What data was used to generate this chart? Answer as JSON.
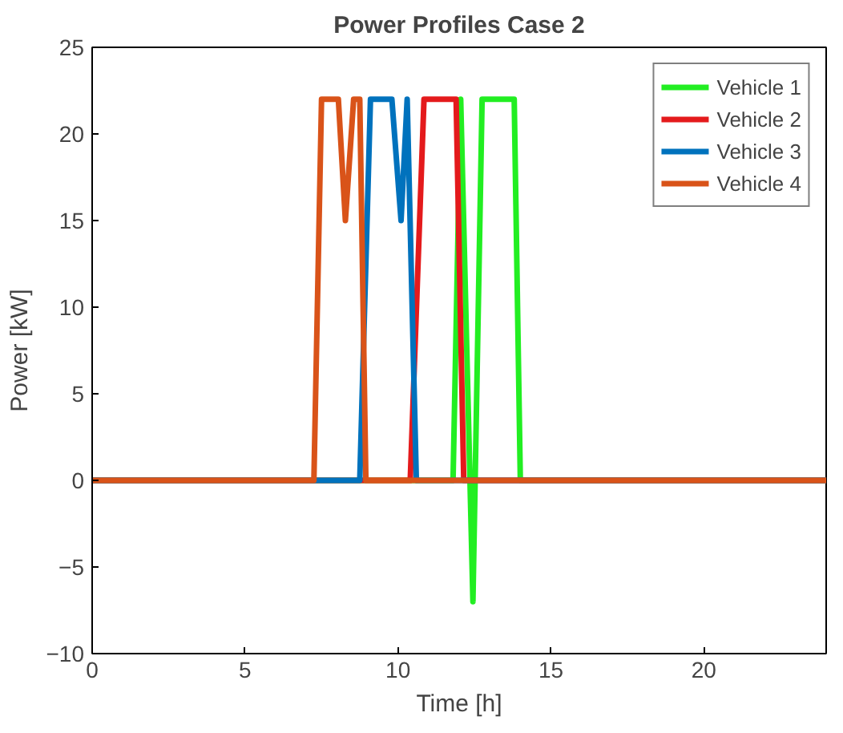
{
  "chart_data": {
    "type": "line",
    "title": "Power Profiles Case 2",
    "xlabel": "Time [h]",
    "ylabel": "Power [kW]",
    "xlim": [
      0,
      24
    ],
    "ylim": [
      -10,
      25
    ],
    "xticks": [
      0,
      5,
      10,
      15,
      20
    ],
    "yticks": [
      -10,
      -5,
      0,
      5,
      10,
      15,
      20,
      25
    ],
    "grid": false,
    "legend": "top right",
    "marker": "none",
    "line_style": "solid",
    "series": [
      {
        "name": "Vehicle 1",
        "color": "#22ee22",
        "x": [
          0,
          11.8,
          12.05,
          12.45,
          12.75,
          13.8,
          14.0,
          24
        ],
        "values": [
          0,
          0,
          22,
          -7,
          22,
          22,
          0,
          0
        ]
      },
      {
        "name": "Vehicle 2",
        "color": "#e41a1c",
        "x": [
          0,
          10.4,
          10.85,
          11.9,
          12.15,
          24
        ],
        "values": [
          0,
          0,
          22,
          22,
          0,
          0
        ]
      },
      {
        "name": "Vehicle 3",
        "color": "#0072bd",
        "x": [
          0,
          8.75,
          9.1,
          9.8,
          10.1,
          10.3,
          10.6,
          24
        ],
        "values": [
          0,
          0,
          22,
          22,
          15,
          22,
          0,
          0
        ]
      },
      {
        "name": "Vehicle 4",
        "color": "#d95319",
        "x": [
          0,
          7.25,
          7.5,
          8.05,
          8.28,
          8.55,
          8.75,
          8.95,
          24
        ],
        "values": [
          0,
          0,
          22,
          22,
          15,
          22,
          22,
          0,
          0
        ]
      }
    ]
  }
}
